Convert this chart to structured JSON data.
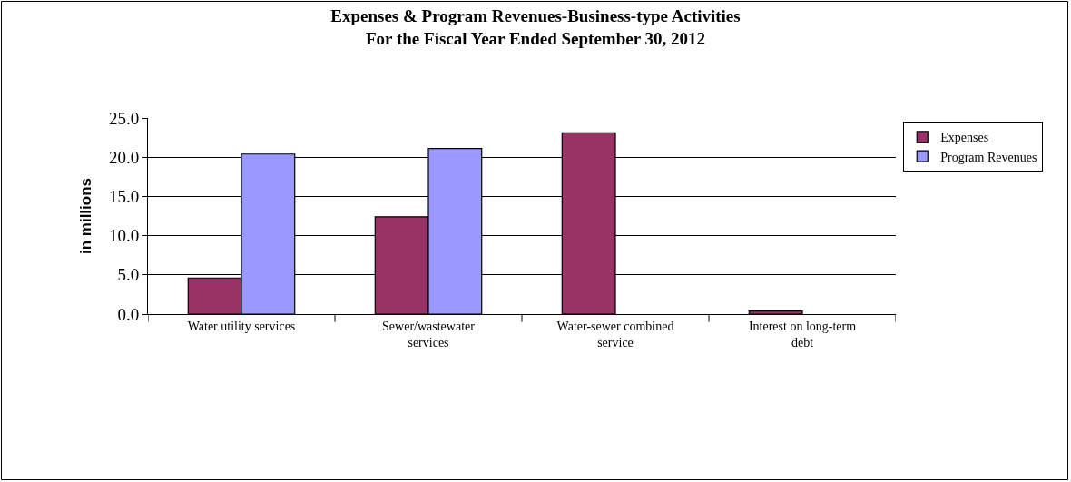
{
  "chart_data": {
    "type": "bar",
    "title": "Expenses & Program Revenues-Business-type Activities\nFor the Fiscal Year Ended September 30, 2012",
    "ylabel": "in millions",
    "categories": [
      "Water utility services",
      "Sewer/wastewater\nservices",
      "Water-sewer combined\nservice",
      "Interest on long-term\ndebt"
    ],
    "series": [
      {
        "name": "Expenses",
        "color": "#993366",
        "values": [
          4.6,
          12.4,
          23.1,
          0.4
        ]
      },
      {
        "name": "Program Revenues",
        "color": "#9999ff",
        "values": [
          20.4,
          21.1,
          null,
          null
        ]
      }
    ],
    "ylim": [
      0,
      25
    ],
    "yticks": [
      {
        "value": 0,
        "label": "0.0"
      },
      {
        "value": 5,
        "label": "5.0"
      },
      {
        "value": 10,
        "label": "10.0"
      },
      {
        "value": 15,
        "label": "15.0"
      },
      {
        "value": 20,
        "label": "20.0"
      },
      {
        "value": 25,
        "label": "25.0"
      }
    ],
    "grid": "y",
    "legend": "right"
  }
}
